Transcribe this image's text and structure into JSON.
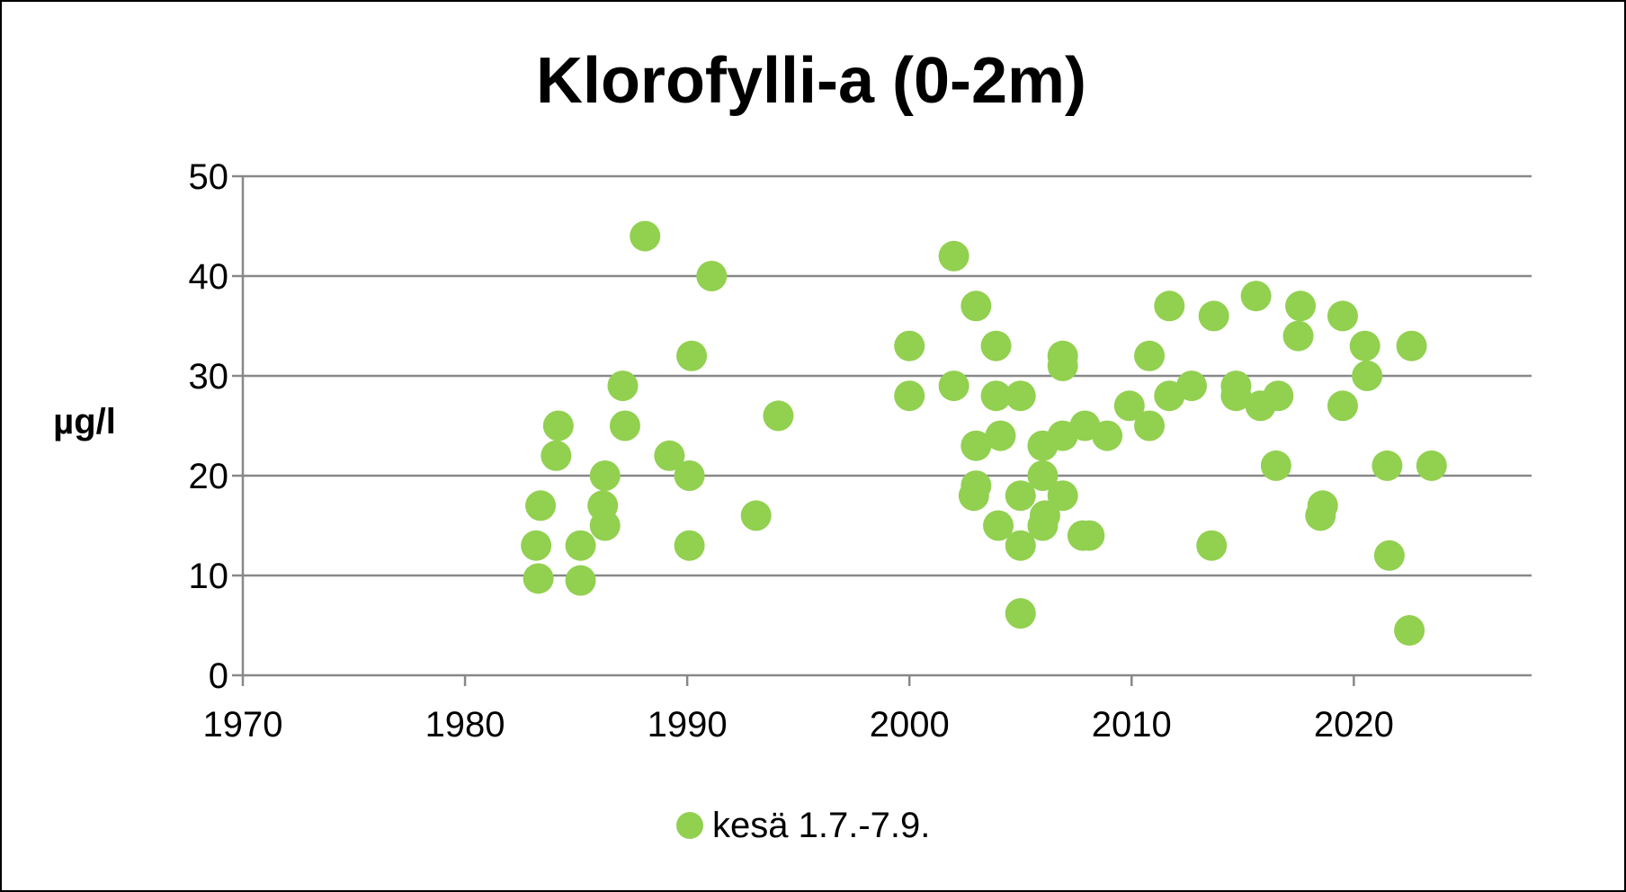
{
  "chart_data": {
    "type": "scatter",
    "title": "Klorofylli-a (0-2m)",
    "xlabel": "",
    "ylabel": "µg/l",
    "xlim": [
      1970,
      2028
    ],
    "ylim": [
      0,
      50
    ],
    "xticks": [
      1970,
      1980,
      1990,
      2000,
      2010,
      2020
    ],
    "yticks": [
      0,
      10,
      20,
      30,
      40,
      50
    ],
    "grid": "horizontal",
    "legend_position": "bottom",
    "series": [
      {
        "name": "kesä 1.7.-7.9.",
        "color": "#92d050",
        "points": [
          [
            1983.2,
            13
          ],
          [
            1983.3,
            9.7
          ],
          [
            1983.4,
            17
          ],
          [
            1984.2,
            25
          ],
          [
            1984.1,
            22
          ],
          [
            1985.2,
            13
          ],
          [
            1985.2,
            9.5
          ],
          [
            1986.3,
            20
          ],
          [
            1986.2,
            17
          ],
          [
            1986.3,
            15
          ],
          [
            1987.1,
            29
          ],
          [
            1987.2,
            25
          ],
          [
            1988.1,
            44
          ],
          [
            1989.2,
            22
          ],
          [
            1990.1,
            20
          ],
          [
            1990.2,
            32
          ],
          [
            1990.1,
            13
          ],
          [
            1991.1,
            40
          ],
          [
            1993.1,
            16
          ],
          [
            1994.1,
            26
          ],
          [
            2000.0,
            33
          ],
          [
            2000.0,
            28
          ],
          [
            2002.0,
            42
          ],
          [
            2002.0,
            29
          ],
          [
            2003.0,
            37
          ],
          [
            2003.0,
            23
          ],
          [
            2003.0,
            19
          ],
          [
            2002.9,
            18
          ],
          [
            2003.9,
            33
          ],
          [
            2003.9,
            28
          ],
          [
            2004.1,
            24
          ],
          [
            2004.0,
            15
          ],
          [
            2005.0,
            28
          ],
          [
            2005.0,
            18
          ],
          [
            2005.0,
            13
          ],
          [
            2005.0,
            6.2
          ],
          [
            2006.0,
            23
          ],
          [
            2006.0,
            20
          ],
          [
            2006.1,
            16
          ],
          [
            2006.0,
            15
          ],
          [
            2006.9,
            32
          ],
          [
            2006.9,
            31
          ],
          [
            2006.9,
            24
          ],
          [
            2006.9,
            18
          ],
          [
            2007.9,
            25
          ],
          [
            2007.8,
            14
          ],
          [
            2008.1,
            14
          ],
          [
            2008.9,
            24
          ],
          [
            2009.9,
            27
          ],
          [
            2010.8,
            32
          ],
          [
            2010.8,
            25
          ],
          [
            2011.7,
            37
          ],
          [
            2011.7,
            28
          ],
          [
            2012.7,
            29
          ],
          [
            2013.7,
            36
          ],
          [
            2013.6,
            13
          ],
          [
            2014.7,
            29
          ],
          [
            2014.7,
            28
          ],
          [
            2015.6,
            38
          ],
          [
            2015.8,
            27
          ],
          [
            2016.6,
            28
          ],
          [
            2016.5,
            21
          ],
          [
            2017.6,
            37
          ],
          [
            2017.5,
            34
          ],
          [
            2018.6,
            17
          ],
          [
            2018.5,
            16
          ],
          [
            2019.5,
            36
          ],
          [
            2019.5,
            27
          ],
          [
            2020.5,
            33
          ],
          [
            2020.6,
            30
          ],
          [
            2021.5,
            21
          ],
          [
            2021.6,
            12
          ],
          [
            2022.6,
            33
          ],
          [
            2022.5,
            4.5
          ],
          [
            2023.5,
            21
          ]
        ]
      }
    ]
  }
}
